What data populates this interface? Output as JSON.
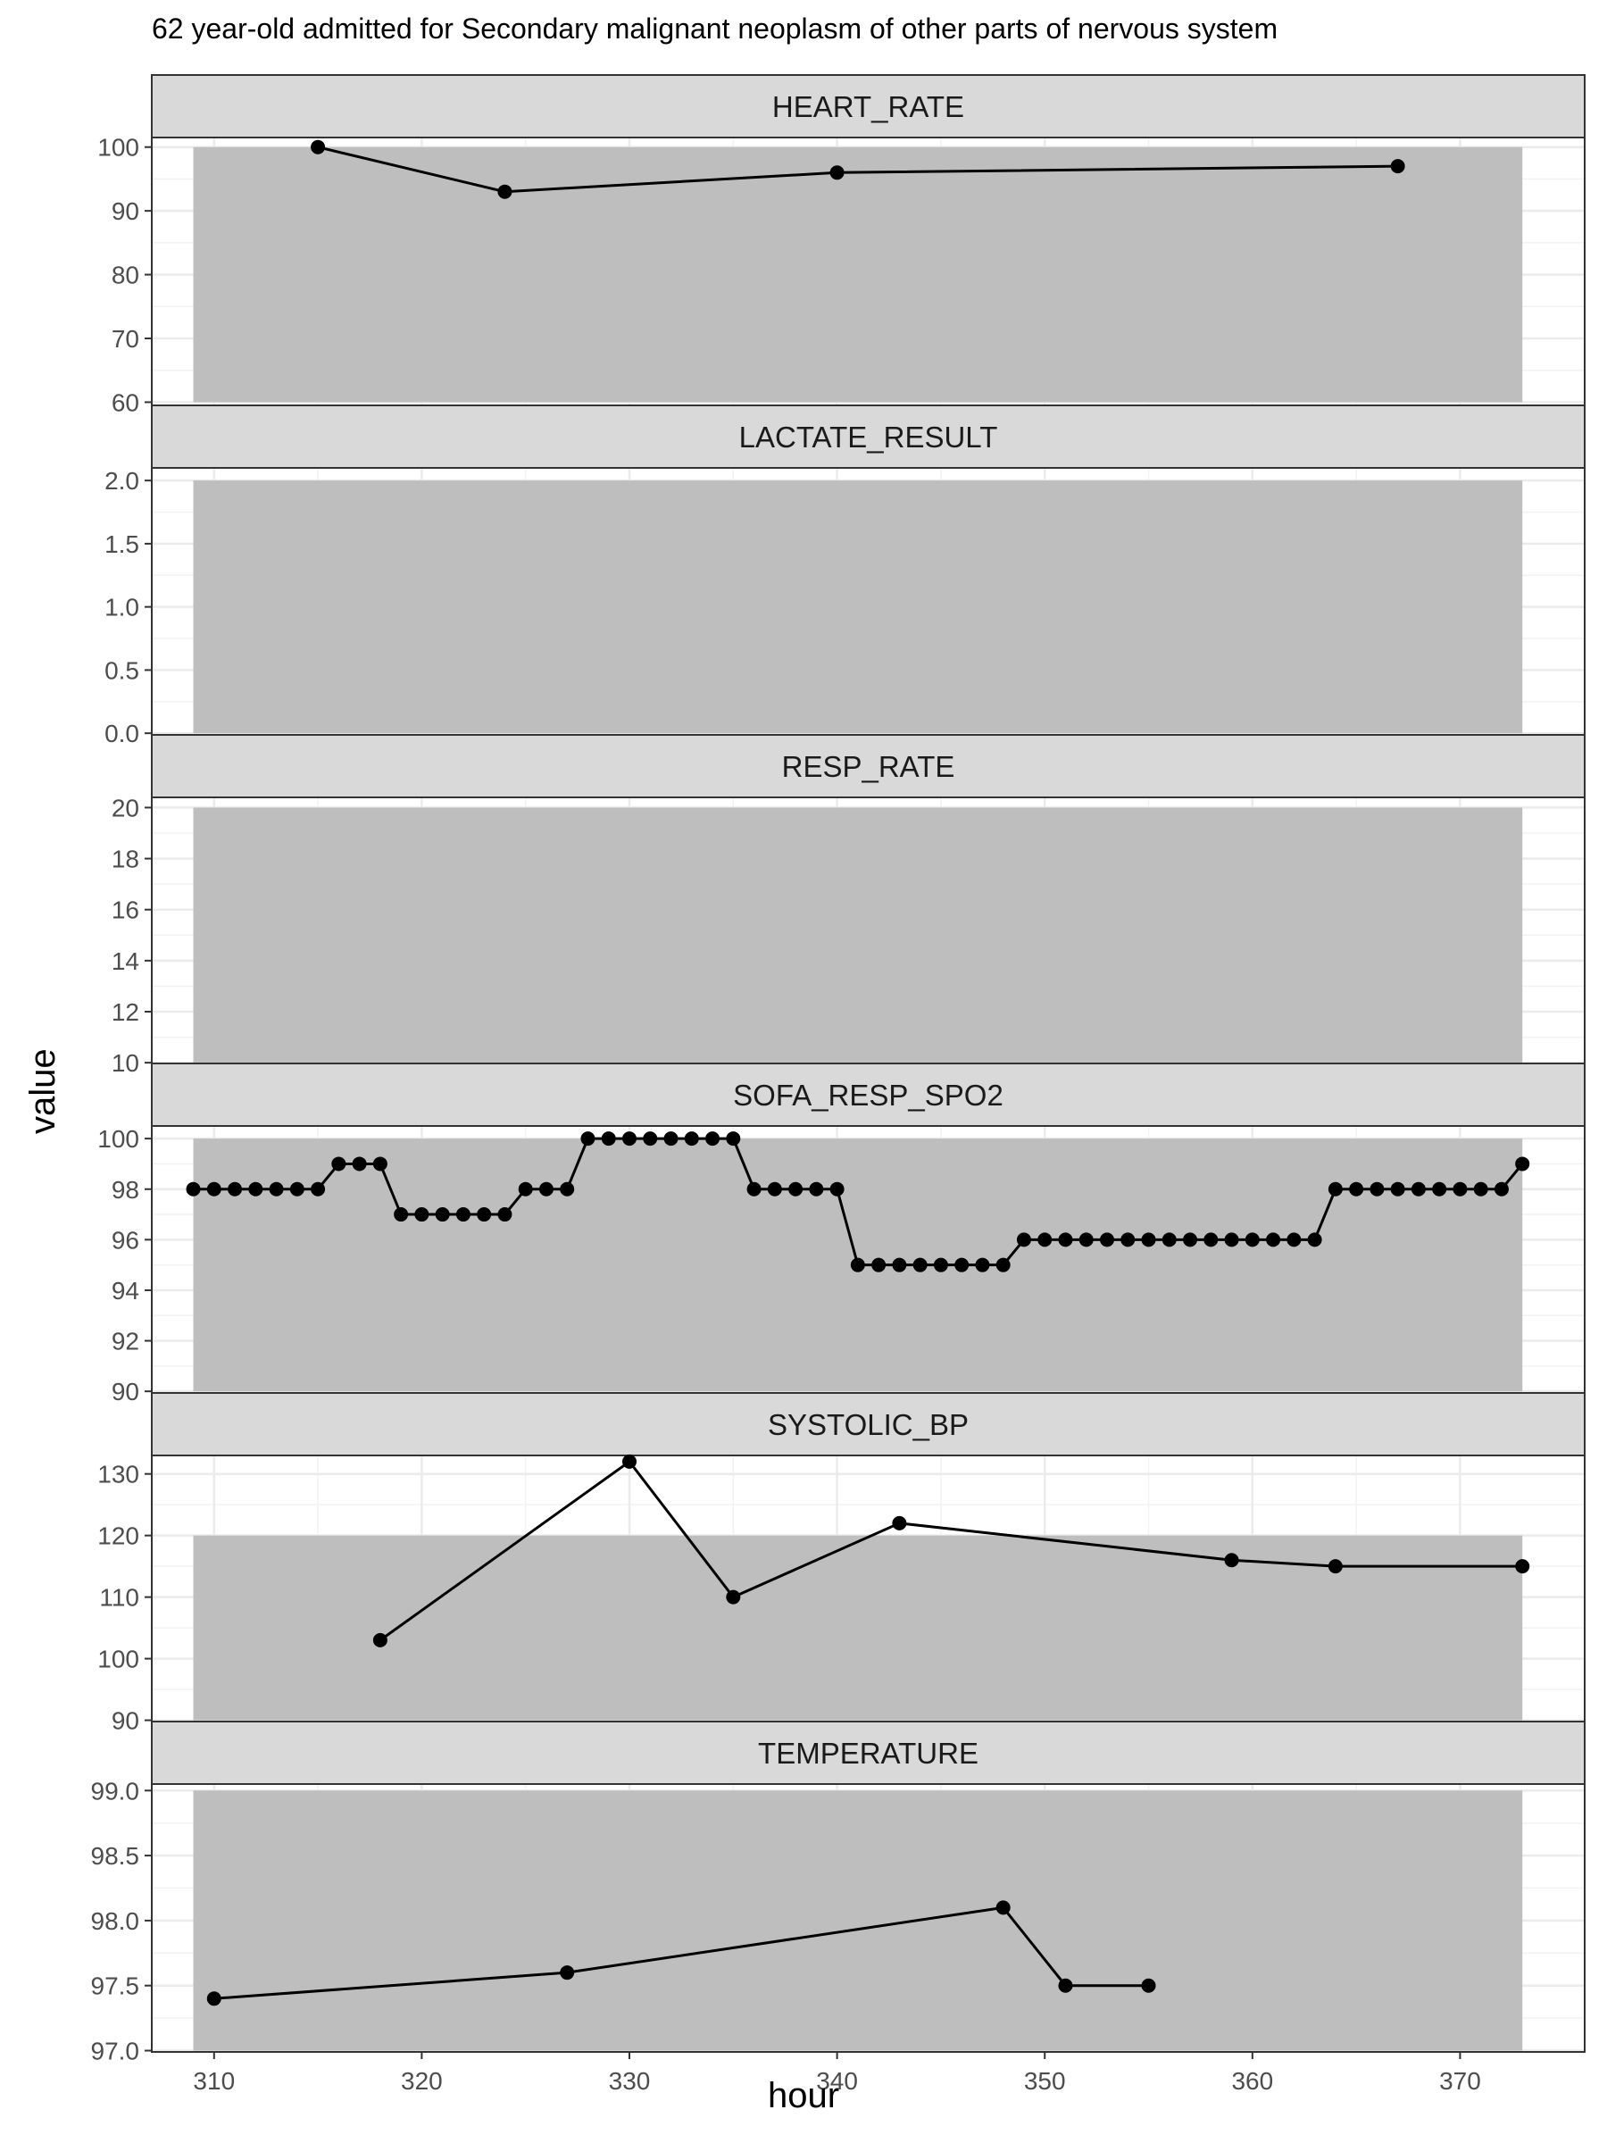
{
  "chart_data": {
    "type": "line",
    "title": "62 year-old admitted for Secondary malignant neoplasm of other parts of nervous system",
    "xlabel": "hour",
    "ylabel": "value",
    "xlim": [
      307,
      376
    ],
    "x_ticks": [
      310,
      320,
      330,
      340,
      350,
      360,
      370
    ],
    "shaded_range_note": "grey normal-range band from hour 309 to 373",
    "shaded_x": [
      309,
      373
    ],
    "panels": [
      {
        "name": "HEART_RATE",
        "ylim": [
          59.5,
          101.5
        ],
        "y_ticks": [
          60,
          70,
          80,
          90,
          100
        ],
        "y_tick_labels": [
          "60",
          "70",
          "80",
          "90",
          "100"
        ],
        "band": [
          60,
          100
        ],
        "x": [
          315,
          324,
          340,
          367
        ],
        "values": [
          100,
          93,
          96,
          97
        ]
      },
      {
        "name": "LACTATE_RESULT",
        "ylim": [
          -0.02,
          2.1
        ],
        "y_ticks": [
          0,
          0.5,
          1.0,
          1.5,
          2.0
        ],
        "y_tick_labels": [
          "0.0",
          "0.5",
          "1.0",
          "1.5",
          "2.0"
        ],
        "band": [
          0,
          2
        ],
        "x": [],
        "values": []
      },
      {
        "name": "RESP_RATE",
        "ylim": [
          9.9,
          20.4
        ],
        "y_ticks": [
          10,
          12,
          14,
          16,
          18,
          20
        ],
        "y_tick_labels": [
          "10",
          "12",
          "14",
          "16",
          "18",
          "20"
        ],
        "band": [
          10,
          20
        ],
        "x": [],
        "values": []
      },
      {
        "name": "SOFA_RESP_SPO2",
        "ylim": [
          89.9,
          100.5
        ],
        "y_ticks": [
          90,
          92,
          94,
          96,
          98,
          100
        ],
        "y_tick_labels": [
          "90",
          "92",
          "94",
          "96",
          "98",
          "100"
        ],
        "band": [
          90,
          100
        ],
        "x": [
          309,
          310,
          311,
          312,
          313,
          314,
          315,
          316,
          317,
          318,
          319,
          320,
          321,
          322,
          323,
          324,
          325,
          326,
          327,
          328,
          329,
          330,
          331,
          332,
          333,
          334,
          335,
          336,
          337,
          338,
          339,
          340,
          341,
          342,
          343,
          344,
          345,
          346,
          347,
          348,
          349,
          350,
          351,
          352,
          353,
          354,
          355,
          356,
          357,
          358,
          359,
          360,
          361,
          362,
          363,
          364,
          365,
          366,
          367,
          368,
          369,
          370,
          371,
          372,
          373
        ],
        "values": [
          98,
          98,
          98,
          98,
          98,
          98,
          98,
          99,
          99,
          99,
          97,
          97,
          97,
          97,
          97,
          97,
          98,
          98,
          98,
          100,
          100,
          100,
          100,
          100,
          100,
          100,
          100,
          98,
          98,
          98,
          98,
          98,
          95,
          95,
          95,
          95,
          95,
          95,
          95,
          95,
          96,
          96,
          96,
          96,
          96,
          96,
          96,
          96,
          96,
          96,
          96,
          96,
          96,
          96,
          96,
          98,
          98,
          98,
          98,
          98,
          98,
          98,
          98,
          98,
          99
        ]
      },
      {
        "name": "SYSTOLIC_BP",
        "ylim": [
          89.5,
          133
        ],
        "y_ticks": [
          90,
          100,
          110,
          120,
          130
        ],
        "y_tick_labels": [
          "90",
          "100",
          "110",
          "120",
          "130"
        ],
        "band": [
          90,
          120
        ],
        "x": [
          318,
          330,
          335,
          343,
          359,
          364,
          373
        ],
        "values": [
          103,
          132,
          110,
          122,
          116,
          115,
          115
        ]
      },
      {
        "name": "TEMPERATURE",
        "ylim": [
          96.99,
          99.05
        ],
        "y_ticks": [
          97.0,
          97.5,
          98.0,
          98.5,
          99.0
        ],
        "y_tick_labels": [
          "97.0",
          "97.5",
          "98.0",
          "98.5",
          "99.0"
        ],
        "band": [
          97,
          99
        ],
        "x": [
          310,
          327,
          348,
          351,
          355
        ],
        "values": [
          97.4,
          97.6,
          98.1,
          97.5,
          97.5
        ]
      }
    ]
  }
}
